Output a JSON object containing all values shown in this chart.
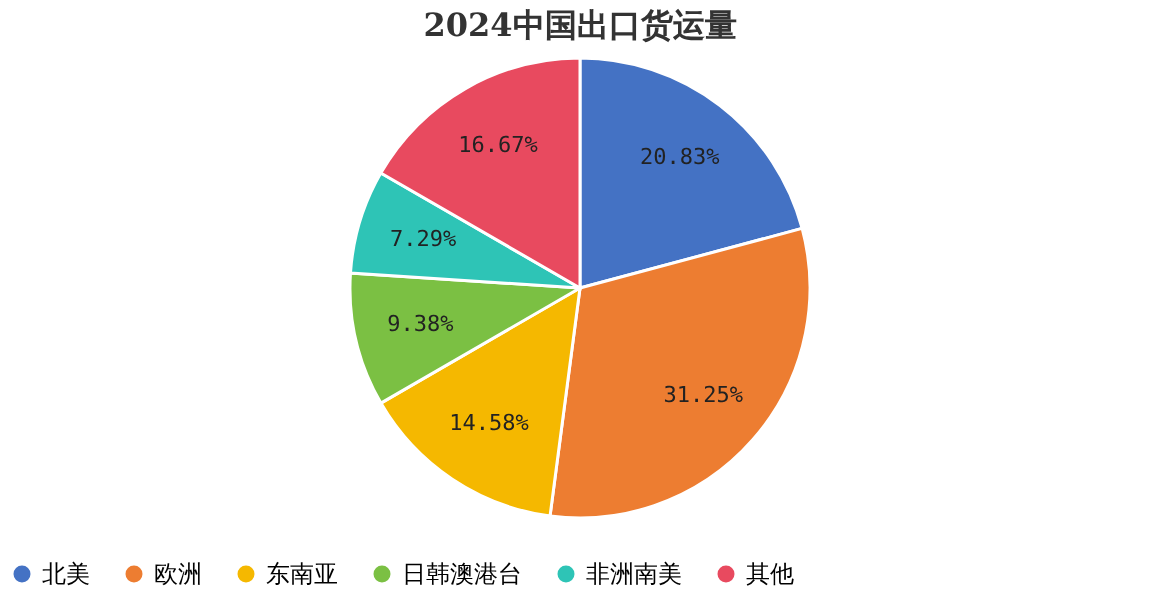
{
  "chart_data": {
    "type": "pie",
    "title": "2024中国出口货运量",
    "categories": [
      "北美",
      "欧洲",
      "东南亚",
      "日韩澳港台",
      "非洲南美",
      "其他"
    ],
    "values": [
      20.83,
      31.25,
      14.58,
      9.38,
      7.29,
      16.67
    ],
    "value_labels": [
      "20.83%",
      "31.25%",
      "14.58%",
      "9.38%",
      "7.29%",
      "16.67%"
    ],
    "colors": [
      "#4472c4",
      "#ed7d31",
      "#f5b800",
      "#7bc043",
      "#2ec4b6",
      "#e84a5f"
    ],
    "legend": "bottom"
  }
}
